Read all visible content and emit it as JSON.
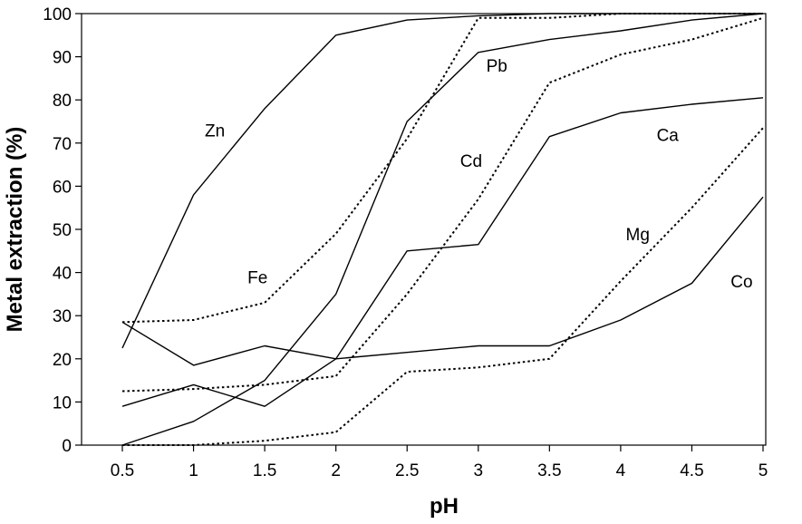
{
  "chart_data": {
    "type": "line",
    "title": "",
    "xlabel": "pH",
    "ylabel": "Metal extraction (%)",
    "x": [
      0.5,
      1,
      1.5,
      2,
      2.5,
      3,
      3.5,
      4,
      4.5,
      5
    ],
    "xticks": [
      "0.5",
      "1",
      "1.5",
      "2",
      "2.5",
      "3",
      "3.5",
      "4",
      "4.5",
      "5"
    ],
    "yticks": [
      "0",
      "10",
      "20",
      "30",
      "40",
      "50",
      "60",
      "70",
      "80",
      "90",
      "100"
    ],
    "xlim": [
      0.5,
      5
    ],
    "ylim": [
      0,
      100
    ],
    "grid": false,
    "legend": "none",
    "series": [
      {
        "name": "Zn",
        "style": "solid",
        "values": [
          22.5,
          58,
          78,
          95,
          98.5,
          99.5,
          100,
          100,
          100,
          100
        ]
      },
      {
        "name": "Fe",
        "style": "dotted",
        "values": [
          28.5,
          29,
          33,
          49,
          71,
          99,
          99,
          100,
          100,
          100
        ]
      },
      {
        "name": "Pb",
        "style": "solid",
        "values": [
          0,
          5.5,
          15,
          35,
          75,
          91,
          94,
          96,
          98.5,
          100
        ]
      },
      {
        "name": "Cd",
        "style": "dotted",
        "values": [
          12.5,
          13,
          14,
          16,
          35,
          57,
          84,
          90.5,
          94,
          99
        ]
      },
      {
        "name": "Ca",
        "style": "solid",
        "values": [
          9,
          14,
          9,
          20,
          45,
          46.5,
          71.5,
          77,
          79,
          80.5
        ]
      },
      {
        "name": "Mg",
        "style": "dotted",
        "values": [
          0,
          0,
          1,
          3,
          17,
          18,
          20,
          38,
          55,
          73.5
        ]
      },
      {
        "name": "Co",
        "style": "solid",
        "values": [
          28.5,
          18.5,
          23,
          20,
          21.5,
          23,
          23,
          29,
          37.5,
          57.5
        ]
      }
    ],
    "annotations": [
      {
        "text": "Zn",
        "x": 1.15,
        "y": 73
      },
      {
        "text": "Fe",
        "x": 1.45,
        "y": 39
      },
      {
        "text": "Pb",
        "x": 3.13,
        "y": 88
      },
      {
        "text": "Cd",
        "x": 2.95,
        "y": 66
      },
      {
        "text": "Ca",
        "x": 4.33,
        "y": 72
      },
      {
        "text": "Mg",
        "x": 4.12,
        "y": 49
      },
      {
        "text": "Co",
        "x": 4.85,
        "y": 38
      }
    ]
  }
}
